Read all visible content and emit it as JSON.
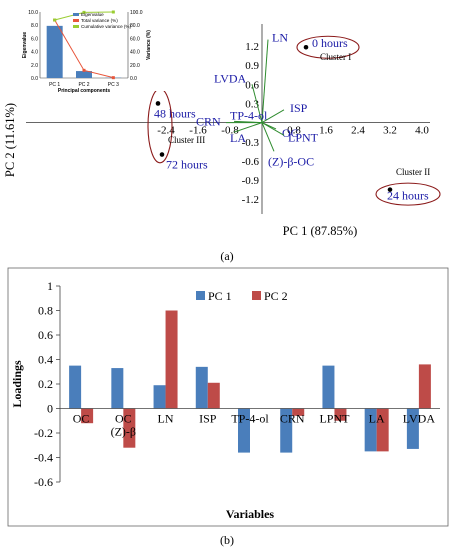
{
  "colors": {
    "loading": "#2e8b2e",
    "label": "#1a1aa6",
    "cluster": "#8b1a1a",
    "pc1": "#4a7ebb",
    "pc2": "#be4b48",
    "variance": "#e8553a",
    "cumulative": "#9acd32"
  },
  "chart_data": [
    {
      "type": "scatter",
      "panel_label": "(a)",
      "xlabel": "PC 1 (87.85%)",
      "ylabel": "PC 2 (11.61%)",
      "xlim": [
        -2.8,
        4.2
      ],
      "ylim": [
        -1.4,
        1.45
      ],
      "x_ticks": [
        -2.4,
        -1.6,
        -0.8,
        0.8,
        1.6,
        2.4,
        3.2,
        4.0
      ],
      "x_tick_labels": [
        "-2.4",
        "-1.6",
        "-0.8",
        "0.8",
        "1.6",
        "2.4",
        "3.2",
        "4.0"
      ],
      "y_ticks": [
        1.2,
        0.9,
        0.6,
        0.3,
        -0.3,
        -0.6,
        -0.9,
        -1.2
      ],
      "y_tick_labels": [
        "1.2",
        "0.9",
        "0.6",
        "0.3",
        "-0.3",
        "-0.6",
        "-0.9",
        "-1.2"
      ],
      "samples": [
        {
          "label": "0 hours",
          "x": 1.1,
          "y": 1.18
        },
        {
          "label": "24 hours",
          "x": 3.2,
          "y": -1.05
        },
        {
          "label": "48 hours",
          "x": -2.6,
          "y": 0.3
        },
        {
          "label": "72 hours",
          "x": -2.5,
          "y": -0.5
        }
      ],
      "loadings": [
        {
          "label": "LN",
          "x": 0.15,
          "y": 1.3
        },
        {
          "label": "LVDA",
          "x": -0.25,
          "y": 0.6
        },
        {
          "label": "ISP",
          "x": 0.55,
          "y": 0.2
        },
        {
          "label": "TP-4-ol",
          "x": -0.7,
          "y": 0.02
        },
        {
          "label": "CRN",
          "x": -0.9,
          "y": 0.0
        },
        {
          "label": "LA",
          "x": -0.7,
          "y": -0.15
        },
        {
          "label": "OC",
          "x": 0.35,
          "y": -0.1
        },
        {
          "label": "LPNT",
          "x": 0.55,
          "y": -0.2
        },
        {
          "label": "(Z)-β-OC",
          "x": 0.3,
          "y": -0.45
        }
      ],
      "clusters": [
        {
          "label": "Cluster I"
        },
        {
          "label": "Cluster II"
        },
        {
          "label": "Cluster III"
        }
      ],
      "inset": {
        "type": "bar",
        "categories": [
          "PC 1",
          "PC 2",
          "PC 3"
        ],
        "xlabel": "Principal components",
        "ylabel_left": "Eigenvalue",
        "ylabel_right": "Variance (%)",
        "left_ticks": [
          "0.0",
          "2.0",
          "4.0",
          "6.0",
          "8.0",
          "10.0"
        ],
        "right_ticks": [
          "0.0",
          "20.0",
          "40.0",
          "60.0",
          "80.0",
          "100.0"
        ],
        "series": [
          {
            "name": "Eigenvalue",
            "values": [
              7.9,
              1.05,
              0.05
            ]
          },
          {
            "name": "Total variance (%)",
            "values": [
              87.85,
              11.61,
              0.5
            ]
          },
          {
            "name": "Cumulative variance (%)",
            "values": [
              87.85,
              99.46,
              100.0
            ]
          }
        ]
      }
    },
    {
      "type": "bar",
      "panel_label": "(b)",
      "xlabel": "Variables",
      "ylabel": "Loadings",
      "ylim": [
        -0.6,
        1.0
      ],
      "y_ticks": [
        1,
        0.8,
        0.6,
        0.4,
        0.2,
        0,
        -0.2,
        -0.4,
        -0.6
      ],
      "y_tick_labels": [
        "1",
        "0.8",
        "0.6",
        "0.4",
        "0.2",
        "0",
        "-0.2",
        "-0.4",
        "-0.6"
      ],
      "categories": [
        "OC",
        "OC\n(Z)-β",
        "LN",
        "ISP",
        "TP-4-ol",
        "CRN",
        "LPNT",
        "LA",
        "LVDA"
      ],
      "category_lines": [
        [
          "OC"
        ],
        [
          "OC",
          "(Z)-β"
        ],
        [
          "LN"
        ],
        [
          "ISP"
        ],
        [
          "TP-4-ol"
        ],
        [
          "CRN"
        ],
        [
          "LPNT"
        ],
        [
          "LA"
        ],
        [
          "LVDA"
        ]
      ],
      "series": [
        {
          "name": "PC 1",
          "values": [
            0.35,
            0.33,
            0.19,
            0.34,
            -0.36,
            -0.36,
            0.35,
            -0.35,
            -0.33
          ]
        },
        {
          "name": "PC 2",
          "values": [
            -0.12,
            -0.32,
            0.8,
            0.21,
            0.0,
            -0.06,
            -0.1,
            -0.35,
            0.36
          ]
        }
      ],
      "legend_position": "top"
    }
  ]
}
